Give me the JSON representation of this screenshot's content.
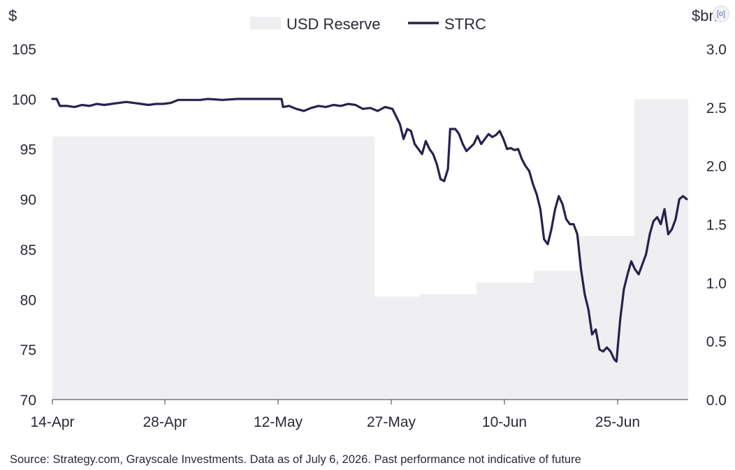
{
  "chart_data": {
    "type": "line",
    "title": "",
    "left_axis_unit": "$",
    "right_axis_unit": "$bn",
    "ylim_left": [
      70,
      105
    ],
    "yticks_left": [
      "105",
      "100",
      "95",
      "90",
      "85",
      "80",
      "75",
      "70"
    ],
    "ylim_right": [
      0.0,
      3.0
    ],
    "yticks_right": [
      "3.0",
      "2.5",
      "2.0",
      "1.5",
      "1.0",
      "0.5",
      "0.0"
    ],
    "x_tick_labels": [
      "14-Apr",
      "28-Apr",
      "12-May",
      "27-May",
      "10-Jun",
      "25-Jun"
    ],
    "x_tick_days": [
      0,
      14,
      28,
      43,
      57,
      71
    ],
    "x_range_days": [
      0,
      78
    ],
    "grid": false,
    "legend_position": "top-center",
    "series": [
      {
        "name": "USD Reserve",
        "type": "area",
        "axis": "right",
        "color": "#efeff1",
        "steps": [
          {
            "from_day": 0,
            "to_day": 39.5,
            "value": 2.25
          },
          {
            "from_day": 39.5,
            "to_day": 45,
            "value": 0.88
          },
          {
            "from_day": 45,
            "to_day": 52,
            "value": 0.9
          },
          {
            "from_day": 52,
            "to_day": 59,
            "value": 1.0
          },
          {
            "from_day": 59,
            "to_day": 65,
            "value": 1.1
          },
          {
            "from_day": 65,
            "to_day": 71.5,
            "value": 1.4
          },
          {
            "from_day": 71.5,
            "to_day": 78,
            "value": 2.57
          }
        ]
      },
      {
        "name": "STRC",
        "type": "line",
        "axis": "left",
        "color": "#25234d",
        "points": [
          [
            0,
            100.0
          ],
          [
            0.6,
            100.0
          ],
          [
            1,
            99.3
          ],
          [
            2,
            99.3
          ],
          [
            3,
            99.2
          ],
          [
            4,
            99.4
          ],
          [
            5,
            99.3
          ],
          [
            6,
            99.5
          ],
          [
            7,
            99.4
          ],
          [
            8,
            99.5
          ],
          [
            9,
            99.6
          ],
          [
            10,
            99.7
          ],
          [
            11,
            99.6
          ],
          [
            12,
            99.5
          ],
          [
            13,
            99.4
          ],
          [
            14,
            99.5
          ],
          [
            15,
            99.5
          ],
          [
            16,
            99.6
          ],
          [
            17,
            99.9
          ],
          [
            18,
            99.9
          ],
          [
            20,
            99.9
          ],
          [
            21,
            100.0
          ],
          [
            23,
            99.9
          ],
          [
            25,
            100.0
          ],
          [
            28,
            100.0
          ],
          [
            31,
            100.0
          ],
          [
            31.2,
            99.2
          ],
          [
            32,
            99.3
          ],
          [
            33,
            99.0
          ],
          [
            34,
            98.8
          ],
          [
            35,
            99.1
          ],
          [
            36,
            99.3
          ],
          [
            37,
            99.2
          ],
          [
            38,
            99.4
          ],
          [
            39,
            99.3
          ],
          [
            40,
            99.5
          ],
          [
            41,
            99.4
          ],
          [
            42,
            99.0
          ],
          [
            43,
            99.1
          ],
          [
            44,
            98.8
          ],
          [
            45,
            99.2
          ],
          [
            46,
            99.0
          ],
          [
            47,
            97.5
          ],
          [
            47.5,
            96.0
          ],
          [
            48,
            97.0
          ],
          [
            48.5,
            96.8
          ],
          [
            49,
            95.5
          ],
          [
            49.5,
            95.0
          ],
          [
            50,
            94.5
          ],
          [
            50.5,
            95.8
          ],
          [
            51,
            95.0
          ],
          [
            51.5,
            94.5
          ],
          [
            52,
            93.5
          ],
          [
            52.5,
            92.0
          ],
          [
            53,
            91.8
          ],
          [
            53.5,
            93.0
          ],
          [
            53.8,
            97.0
          ],
          [
            54.5,
            97.0
          ],
          [
            55,
            96.5
          ],
          [
            55.5,
            95.5
          ],
          [
            56,
            94.8
          ],
          [
            57,
            95.5
          ],
          [
            57.5,
            96.3
          ],
          [
            58,
            95.5
          ],
          [
            58.5,
            96.0
          ],
          [
            59,
            96.5
          ],
          [
            59.5,
            96.2
          ],
          [
            60,
            96.4
          ],
          [
            60.5,
            96.8
          ],
          [
            61,
            96.0
          ],
          [
            61.5,
            95.0
          ],
          [
            62,
            95.1
          ],
          [
            62.5,
            94.9
          ],
          [
            63,
            95.0
          ],
          [
            63.5,
            94.0
          ],
          [
            64,
            93.3
          ],
          [
            64.5,
            92.8
          ],
          [
            65,
            91.5
          ],
          [
            65.5,
            90.5
          ],
          [
            66,
            89.0
          ],
          [
            66.5,
            86.0
          ],
          [
            67,
            85.5
          ],
          [
            67.5,
            87.0
          ],
          [
            68,
            89.0
          ],
          [
            68.5,
            90.3
          ],
          [
            69,
            89.5
          ],
          [
            69.5,
            88.0
          ],
          [
            70,
            87.5
          ],
          [
            70.5,
            87.5
          ],
          [
            71,
            86.5
          ],
          [
            71.5,
            83.0
          ],
          [
            72,
            80.5
          ],
          [
            72.5,
            79.0
          ],
          [
            73,
            76.5
          ],
          [
            73.5,
            77.0
          ],
          [
            74,
            75.0
          ],
          [
            74.5,
            74.8
          ],
          [
            75,
            75.2
          ],
          [
            75.5,
            74.8
          ],
          [
            76,
            74.0
          ],
          [
            76.3,
            73.8
          ],
          [
            76.8,
            78.0
          ],
          [
            77.3,
            81.0
          ],
          [
            77.8,
            82.5
          ],
          [
            78.3,
            83.8
          ],
          [
            78.8,
            83.0
          ],
          [
            79.3,
            82.5
          ],
          [
            79.8,
            83.5
          ],
          [
            80.3,
            84.5
          ],
          [
            80.8,
            86.5
          ],
          [
            81.3,
            87.8
          ],
          [
            81.8,
            88.2
          ],
          [
            82.3,
            87.5
          ],
          [
            82.8,
            89.0
          ],
          [
            83.3,
            86.5
          ],
          [
            83.8,
            87.0
          ],
          [
            84.3,
            88.0
          ],
          [
            84.8,
            90.0
          ],
          [
            85.3,
            90.3
          ],
          [
            85.8,
            90.0
          ]
        ]
      }
    ]
  },
  "source_text": "Source: Strategy.com, Grayscale Investments. Data as of July 6, 2026. Past performance not indicative of future",
  "corner_icon_glyph": "[o]"
}
